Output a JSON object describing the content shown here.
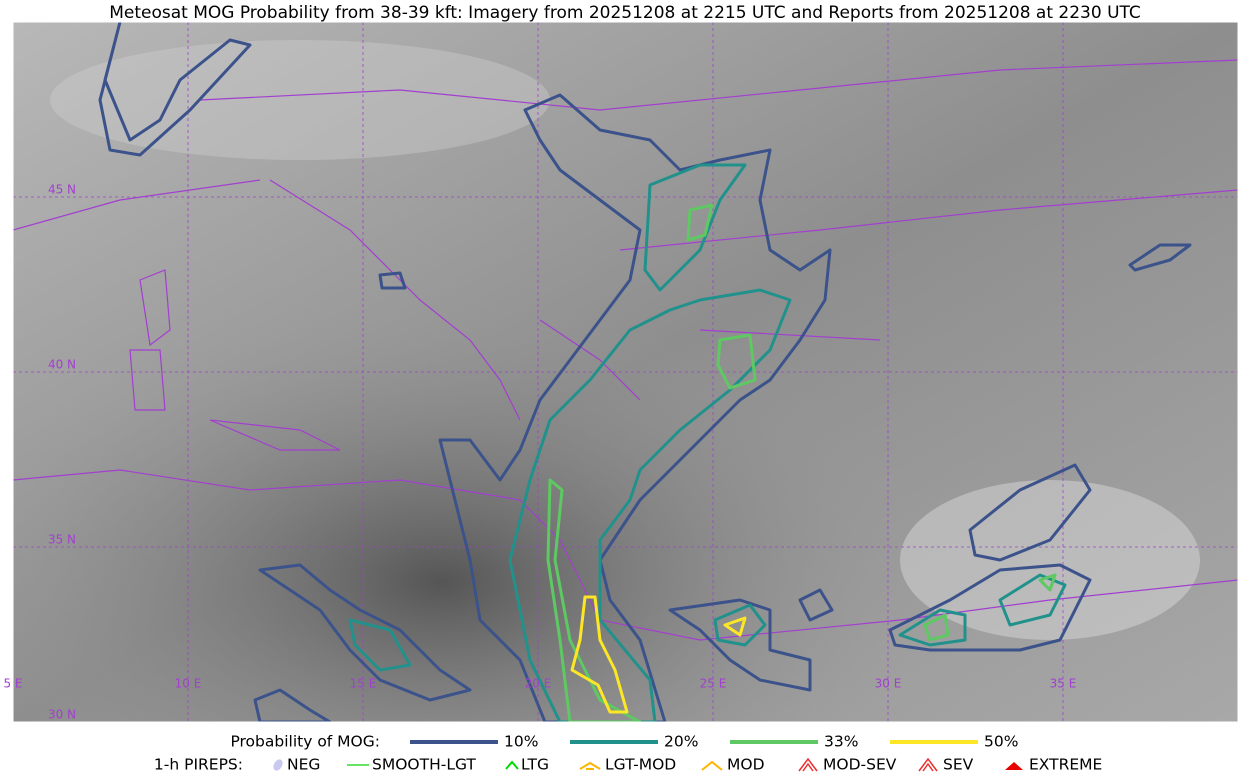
{
  "title": "Meteosat MOG Probability from 38-39 kft: Imagery from 20251208 at 2215 UTC and Reports from 20251208 at 2230 UTC",
  "latitude_labels": [
    "45 N",
    "40 N",
    "35 N",
    "30 N"
  ],
  "longitude_labels": [
    "5 E",
    "10 E",
    "15 E",
    "20 E",
    "25 E",
    "30 E",
    "35 E"
  ],
  "legend": {
    "probability": {
      "label": "Probability of MOG:",
      "levels": [
        {
          "label": "10%",
          "color": "#3b528b"
        },
        {
          "label": "20%",
          "color": "#21918c"
        },
        {
          "label": "33%",
          "color": "#5ec962"
        },
        {
          "label": "50%",
          "color": "#fde725"
        }
      ]
    },
    "pireps": {
      "label": "1-h PIREPS:",
      "items": [
        {
          "label": "NEG",
          "color": "#c8c8f0"
        },
        {
          "label": "SMOOTH-LGT",
          "color": "#32dc32"
        },
        {
          "label": "LTG",
          "color": "#00dc00"
        },
        {
          "label": "LGT-MOD",
          "color": "#ffb400"
        },
        {
          "label": "MOD",
          "color": "#ffb400"
        },
        {
          "label": "MOD-SEV",
          "color": "#e83030"
        },
        {
          "label": "SEV",
          "color": "#e83030"
        },
        {
          "label": "EXTREME",
          "color": "#e80000"
        }
      ]
    }
  }
}
